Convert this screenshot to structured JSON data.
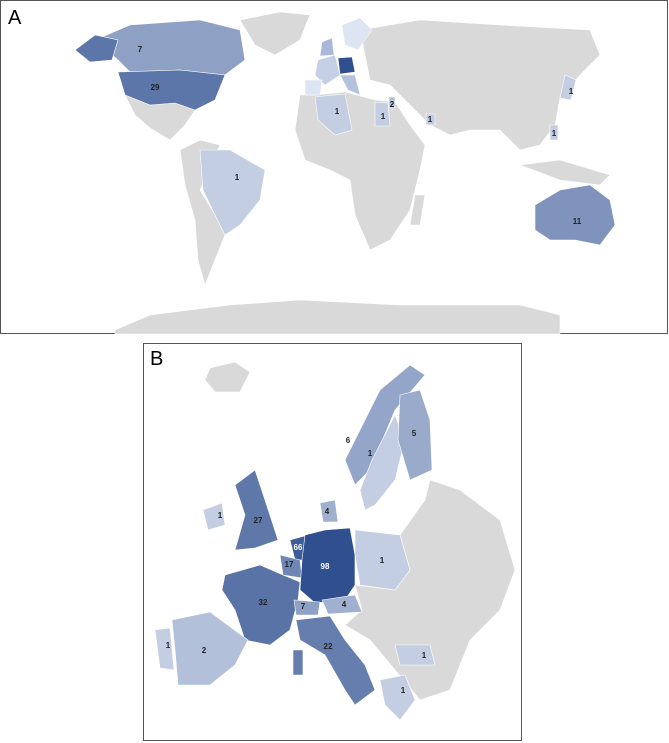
{
  "panels": [
    {
      "label": "A",
      "regions": [
        {
          "value": 7
        },
        {
          "value": 29
        },
        {
          "value": 1
        },
        {
          "value": 1
        },
        {
          "value": 1
        },
        {
          "value": 2
        },
        {
          "value": 1
        },
        {
          "value": 1
        },
        {
          "value": 1
        },
        {
          "value": 11
        }
      ]
    },
    {
      "label": "B",
      "regions": [
        {
          "value": 6
        },
        {
          "value": 1
        },
        {
          "value": 5
        },
        {
          "value": 1
        },
        {
          "value": 27
        },
        {
          "value": 4
        },
        {
          "value": 66
        },
        {
          "value": 17
        },
        {
          "value": 98
        },
        {
          "value": 1
        },
        {
          "value": 32
        },
        {
          "value": 7
        },
        {
          "value": 4
        },
        {
          "value": 2
        },
        {
          "value": 1
        },
        {
          "value": 22
        },
        {
          "value": 1
        },
        {
          "value": 1
        }
      ]
    }
  ]
}
